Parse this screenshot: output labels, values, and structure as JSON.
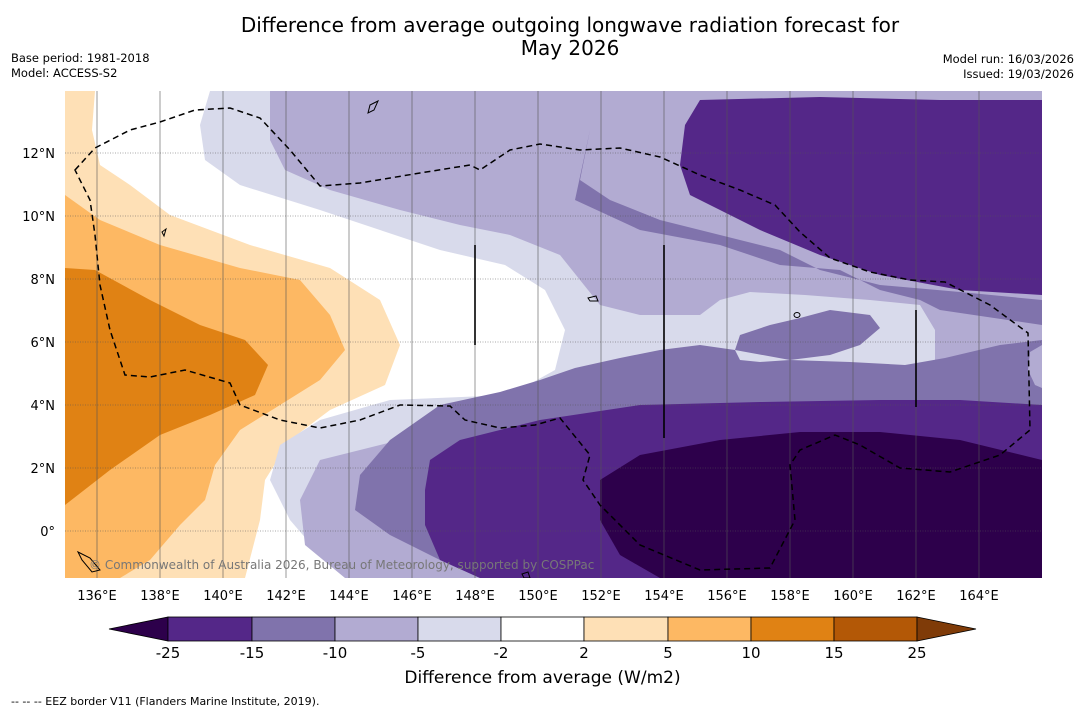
{
  "title_line1": "Difference from average outgoing longwave radiation forecast for",
  "title_line2": "May 2026",
  "base_period": "Base period: 1981-2018",
  "model": "Model: ACCESS-S2",
  "model_run": "Model run: 16/03/2026",
  "issued": "Issued: 19/03/2026",
  "copyright": "© Commonwealth of Australia 2026, Bureau of Meteorology, supported by COSPPac",
  "footer": "-- -- -- EEZ border V11 (Flanders Marine Institute, 2019).",
  "lon_labels": [
    "136°E",
    "138°E",
    "140°E",
    "142°E",
    "144°E",
    "146°E",
    "148°E",
    "150°E",
    "152°E",
    "154°E",
    "156°E",
    "158°E",
    "160°E",
    "162°E",
    "164°E"
  ],
  "lat_labels": [
    "12°N",
    "10°N",
    "8°N",
    "6°N",
    "4°N",
    "2°N",
    "0°"
  ],
  "colorbar": {
    "title": "Difference from average (W/m2)",
    "ticks": [
      "-25",
      "-15",
      "-10",
      "-5",
      "-2",
      "2",
      "5",
      "10",
      "15",
      "25"
    ],
    "colors": {
      "below_min": "#2d004b",
      "m25_m15": "#542788",
      "m15_m10": "#8073ac",
      "m10_m5": "#b2abd2",
      "m5_m2": "#d8daeb",
      "m2_2": "#ffffff",
      "p2_p5": "#fee0b6",
      "p5_p10": "#fdb863",
      "p10_p15": "#e08214",
      "p15_p25": "#b35806",
      "above_max": "#7f3b08"
    }
  }
}
